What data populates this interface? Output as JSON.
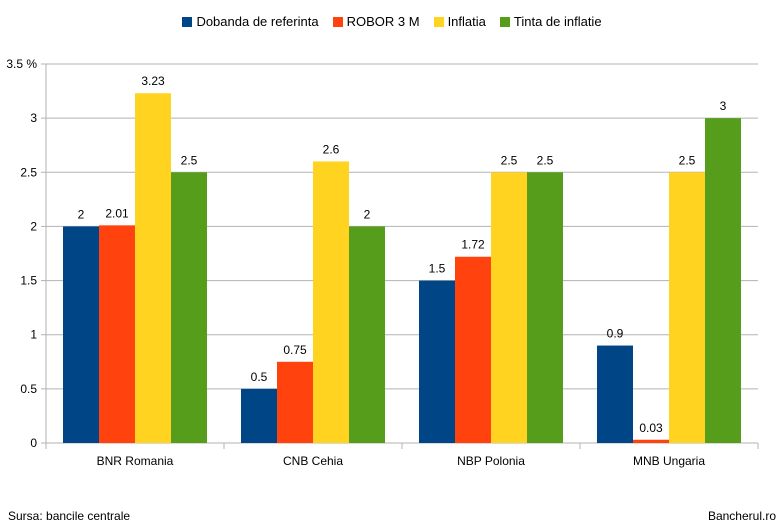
{
  "footer": {
    "source": "Sursa: bancile centrale",
    "brand": "Bancherul.ro"
  },
  "chart_data": {
    "type": "bar",
    "title": "",
    "xlabel": "",
    "ylabel": "",
    "y_unit": "%",
    "ylim": [
      0,
      3.5
    ],
    "yticks": [
      "0",
      "0.5",
      "1",
      "1.5",
      "2",
      "2.5",
      "3",
      "3.5"
    ],
    "grid": "horizontal",
    "legend_position": "top-center",
    "categories": [
      "BNR Romania",
      "CNB Cehia",
      "NBP Polonia",
      "MNB Ungaria"
    ],
    "series": [
      {
        "name": "Dobanda de referinta",
        "color": "#004586",
        "values": [
          2,
          0.5,
          1.5,
          0.9
        ],
        "labels": [
          "2",
          "0.5",
          "1.5",
          "0.9"
        ]
      },
      {
        "name": "ROBOR 3 M",
        "color": "#ff420e",
        "values": [
          2.01,
          0.75,
          1.72,
          0.03
        ],
        "labels": [
          "2.01",
          "0.75",
          "1.72",
          "0.03"
        ]
      },
      {
        "name": "Inflatia",
        "color": "#ffd320",
        "values": [
          3.23,
          2.6,
          2.5,
          2.5
        ],
        "labels": [
          "3.23",
          "2.6",
          "2.5",
          "2.5"
        ]
      },
      {
        "name": "Tinta de inflatie",
        "color": "#579d1c",
        "values": [
          2.5,
          2,
          2.5,
          3
        ],
        "labels": [
          "2.5",
          "2",
          "2.5",
          "3"
        ]
      }
    ]
  }
}
